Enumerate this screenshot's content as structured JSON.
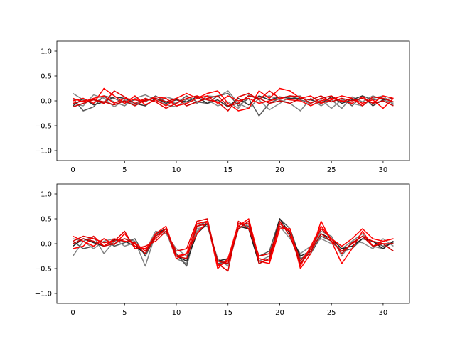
{
  "chart_data": [
    {
      "type": "line",
      "title": "",
      "xlabel": "",
      "ylabel": "",
      "xlim": [
        -1.55,
        32.55
      ],
      "ylim": [
        -1.2,
        1.2
      ],
      "xticks": [
        0,
        5,
        10,
        15,
        20,
        25,
        30
      ],
      "yticks": [
        -1.0,
        -0.5,
        0.0,
        0.5,
        1.0
      ],
      "xtick_labels": [
        "0",
        "5",
        "10",
        "15",
        "20",
        "25",
        "30"
      ],
      "ytick_labels": [
        "−1.0",
        "−0.5",
        "0.0",
        "0.5",
        "1.0"
      ],
      "grid": false,
      "x": [
        0,
        1,
        2,
        3,
        4,
        5,
        6,
        7,
        8,
        9,
        10,
        11,
        12,
        13,
        14,
        15,
        16,
        17,
        18,
        19,
        20,
        21,
        22,
        23,
        24,
        25,
        26,
        27,
        28,
        29,
        30,
        31
      ],
      "series": [
        {
          "color": "#7f7f7f",
          "values": [
            0.15,
            0.02,
            -0.05,
            0.08,
            -0.02,
            -0.1,
            0.05,
            0.12,
            0.02,
            -0.08,
            -0.12,
            0.03,
            -0.05,
            0.1,
            0.08,
            0.2,
            -0.05,
            -0.15,
            0.05,
            0.1,
            0.02,
            -0.05,
            -0.2,
            0.05,
            -0.1,
            0.02,
            -0.15,
            0.08,
            -0.02,
            0.1,
            0.02,
            -0.05
          ]
        },
        {
          "color": "#5a5a5a",
          "values": [
            0.05,
            -0.2,
            -0.12,
            0.1,
            0.05,
            -0.05,
            0.02,
            -0.02,
            0.1,
            -0.02,
            -0.05,
            0.1,
            -0.02,
            -0.05,
            0.1,
            0.15,
            -0.1,
            0.05,
            -0.3,
            -0.05,
            0.05,
            0.1,
            0.02,
            -0.05,
            0.05,
            -0.02,
            0.05,
            -0.1,
            0.1,
            0.02,
            0.05,
            -0.02
          ]
        },
        {
          "color": "#8a8a8a",
          "values": [
            -0.05,
            -0.1,
            0.12,
            0.05,
            -0.12,
            0.02,
            -0.08,
            0.05,
            -0.02,
            0.08,
            0.02,
            -0.05,
            0.05,
            0.02,
            -0.1,
            -0.02,
            -0.15,
            0.12,
            0.02,
            -0.18,
            -0.05,
            0.08,
            0.1,
            -0.1,
            0.02,
            -0.15,
            0.02,
            -0.05,
            -0.1,
            0.05,
            0.1,
            -0.08
          ]
        },
        {
          "color": "#333333",
          "values": [
            -0.1,
            0.05,
            -0.08,
            -0.02,
            0.08,
            0.05,
            -0.05,
            -0.1,
            0.05,
            -0.05,
            0.02,
            -0.02,
            0.08,
            -0.05,
            0.02,
            -0.12,
            0.05,
            -0.08,
            0.1,
            0.02,
            0.08,
            0.05,
            0.05,
            0.02,
            -0.05,
            0.08,
            -0.05,
            0.02,
            0.1,
            -0.1,
            0.02,
            0.05
          ]
        },
        {
          "color": "#ff0000",
          "values": [
            0.0,
            0.05,
            -0.05,
            0.25,
            0.1,
            -0.05,
            0.1,
            -0.08,
            0.02,
            -0.1,
            0.05,
            0.15,
            0.05,
            0.15,
            0.2,
            -0.05,
            -0.2,
            -0.15,
            0.2,
            0.05,
            0.25,
            0.2,
            0.05,
            0.1,
            -0.05,
            0.02,
            0.1,
            0.05,
            -0.05,
            0.02,
            -0.15,
            0.05
          ]
        },
        {
          "color": "#e00000",
          "values": [
            -0.05,
            0.0,
            0.02,
            -0.05,
            0.2,
            0.08,
            -0.05,
            0.05,
            -0.02,
            -0.15,
            -0.05,
            0.05,
            0.1,
            0.02,
            -0.02,
            -0.2,
            0.08,
            0.15,
            0.02,
            0.2,
            0.05,
            0.1,
            0.08,
            -0.05,
            0.05,
            0.1,
            -0.02,
            0.05,
            -0.1,
            0.08,
            0.05,
            -0.02
          ]
        },
        {
          "color": "#ff0000",
          "values": [
            0.05,
            -0.02,
            0.05,
            0.1,
            -0.05,
            0.05,
            0.02,
            0.0,
            0.08,
            0.05,
            -0.1,
            -0.05,
            0.05,
            0.1,
            -0.05,
            0.1,
            0.0,
            0.05,
            -0.05,
            0.0,
            0.05,
            0.02,
            0.0,
            -0.1,
            0.0,
            0.05,
            0.0,
            -0.05,
            0.08,
            -0.05,
            0.1,
            0.05
          ]
        },
        {
          "color": "#cc0000",
          "values": [
            -0.12,
            -0.05,
            0.02,
            -0.02,
            -0.08,
            0.0,
            -0.1,
            0.02,
            0.05,
            -0.02,
            0.05,
            -0.1,
            -0.02,
            0.05,
            0.1,
            -0.1,
            -0.05,
            0.1,
            0.05,
            -0.05,
            0.0,
            -0.05,
            0.05,
            0.02,
            0.1,
            -0.02,
            0.05,
            0.0,
            0.05,
            -0.05,
            0.0,
            -0.1
          ]
        }
      ]
    },
    {
      "type": "line",
      "title": "",
      "xlabel": "",
      "ylabel": "",
      "xlim": [
        -1.55,
        32.55
      ],
      "ylim": [
        -1.2,
        1.2
      ],
      "xticks": [
        0,
        5,
        10,
        15,
        20,
        25,
        30
      ],
      "yticks": [
        -1.0,
        -0.5,
        0.0,
        0.5,
        1.0
      ],
      "xtick_labels": [
        "0",
        "5",
        "10",
        "15",
        "20",
        "25",
        "30"
      ],
      "ytick_labels": [
        "−1.0",
        "−0.5",
        "0.0",
        "0.5",
        "1.0"
      ],
      "grid": false,
      "x": [
        0,
        1,
        2,
        3,
        4,
        5,
        6,
        7,
        8,
        9,
        10,
        11,
        12,
        13,
        14,
        15,
        16,
        17,
        18,
        19,
        20,
        21,
        22,
        23,
        24,
        25,
        26,
        27,
        28,
        29,
        30,
        31
      ],
      "series": [
        {
          "color": "#7f7f7f",
          "values": [
            -0.25,
            0.05,
            0.15,
            -0.2,
            0.05,
            0.1,
            0.05,
            -0.45,
            0.2,
            0.25,
            -0.3,
            -0.4,
            0.25,
            0.4,
            -0.45,
            -0.3,
            0.35,
            0.3,
            -0.35,
            -0.25,
            0.4,
            0.25,
            -0.4,
            -0.1,
            0.25,
            0.15,
            -0.25,
            0.05,
            0.2,
            -0.05,
            -0.1,
            0.05
          ]
        },
        {
          "color": "#555555",
          "values": [
            0.05,
            -0.1,
            -0.05,
            0.1,
            -0.05,
            0.02,
            0.1,
            -0.25,
            0.15,
            0.3,
            -0.2,
            -0.45,
            0.35,
            0.45,
            -0.4,
            -0.35,
            0.4,
            0.35,
            -0.25,
            -0.15,
            0.5,
            0.3,
            -0.3,
            -0.2,
            0.15,
            0.05,
            -0.15,
            -0.1,
            0.1,
            0.05,
            -0.05,
            0.02
          ]
        },
        {
          "color": "#8a8a8a",
          "values": [
            0.1,
            0.05,
            -0.1,
            0.05,
            0.1,
            -0.05,
            0.02,
            -0.15,
            0.25,
            0.2,
            -0.1,
            -0.25,
            0.3,
            0.35,
            -0.3,
            -0.45,
            0.3,
            0.4,
            -0.3,
            -0.35,
            0.35,
            0.1,
            -0.2,
            -0.05,
            0.1,
            0.0,
            -0.1,
            0.05,
            0.02,
            -0.1,
            0.1,
            -0.05
          ]
        },
        {
          "color": "#222222",
          "values": [
            -0.05,
            0.1,
            0.02,
            -0.05,
            0.08,
            0.05,
            -0.05,
            -0.2,
            0.2,
            0.3,
            -0.25,
            -0.35,
            0.2,
            0.4,
            -0.35,
            -0.3,
            0.35,
            0.3,
            -0.4,
            -0.3,
            0.5,
            0.2,
            -0.25,
            -0.15,
            0.2,
            0.1,
            -0.1,
            -0.05,
            0.1,
            0.05,
            -0.1,
            0.05
          ]
        },
        {
          "color": "#ff0000",
          "values": [
            0.15,
            0.05,
            -0.05,
            0.1,
            -0.02,
            0.2,
            -0.05,
            -0.1,
            0.1,
            0.3,
            -0.3,
            -0.2,
            0.4,
            0.45,
            -0.5,
            -0.3,
            0.4,
            0.4,
            -0.35,
            -0.4,
            0.3,
            0.3,
            -0.5,
            -0.2,
            0.45,
            0.05,
            -0.4,
            -0.1,
            0.25,
            -0.05,
            0.05,
            0.1
          ]
        },
        {
          "color": "#e00000",
          "values": [
            0.05,
            0.15,
            0.1,
            0.02,
            0.05,
            0.25,
            -0.1,
            -0.05,
            0.05,
            0.25,
            -0.15,
            -0.1,
            0.45,
            0.5,
            -0.4,
            -0.55,
            0.45,
            0.3,
            -0.25,
            -0.2,
            0.35,
            0.25,
            -0.35,
            -0.1,
            0.3,
            0.1,
            -0.2,
            0.02,
            0.15,
            0.05,
            0.0,
            0.0
          ]
        },
        {
          "color": "#ff0000",
          "values": [
            -0.1,
            -0.05,
            0.15,
            -0.05,
            0.1,
            0.05,
            0.02,
            -0.15,
            0.2,
            0.35,
            -0.25,
            -0.2,
            0.2,
            0.45,
            -0.45,
            -0.35,
            0.35,
            0.5,
            -0.3,
            -0.35,
            0.4,
            0.25,
            -0.45,
            -0.05,
            0.35,
            0.1,
            -0.05,
            0.1,
            0.3,
            0.1,
            0.05,
            0.1
          ]
        },
        {
          "color": "#cc0000",
          "values": [
            0.0,
            0.1,
            0.05,
            -0.05,
            0.0,
            0.1,
            0.0,
            -0.2,
            0.15,
            0.3,
            -0.25,
            -0.3,
            0.35,
            0.4,
            -0.35,
            -0.4,
            0.3,
            0.45,
            -0.4,
            -0.3,
            0.45,
            0.15,
            -0.4,
            -0.15,
            0.2,
            0.05,
            -0.15,
            0.0,
            0.15,
            -0.05,
            0.0,
            -0.15
          ]
        }
      ]
    }
  ]
}
